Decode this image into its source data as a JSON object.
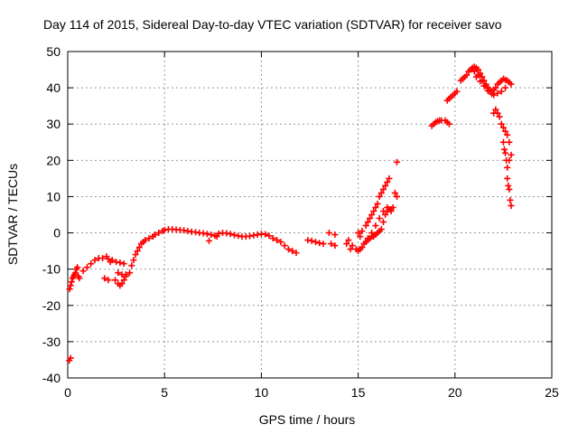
{
  "chart_data": {
    "type": "scatter",
    "title": "Day 114 of 2015, Sidereal Day-to-day VTEC variation (SDTVAR) for receiver savo",
    "xlabel": "GPS time / hours",
    "ylabel": "SDTVAR / TECUs",
    "xlim": [
      0,
      25
    ],
    "ylim": [
      -40,
      50
    ],
    "xticks": [
      "0",
      "5",
      "10",
      "15",
      "20",
      "25"
    ],
    "yticks": [
      "-40",
      "-30",
      "-20",
      "-10",
      "0",
      "10",
      "20",
      "30",
      "40",
      "50"
    ],
    "grid": true,
    "marker": "plus",
    "colors": {
      "series": "#ff0000",
      "grid": "#999999",
      "axis": "#000000"
    },
    "series": [
      {
        "name": "SDTVAR",
        "points": [
          [
            0.08,
            -35.2
          ],
          [
            0.15,
            -34.5
          ],
          [
            0.1,
            -15.5
          ],
          [
            0.15,
            -14.5
          ],
          [
            0.2,
            -13.5
          ],
          [
            0.25,
            -12.5
          ],
          [
            0.3,
            -12
          ],
          [
            0.35,
            -11.5
          ],
          [
            0.4,
            -11
          ],
          [
            0.45,
            -10
          ],
          [
            0.5,
            -9.5
          ],
          [
            0.55,
            -12
          ],
          [
            0.6,
            -12.5
          ],
          [
            0.8,
            -10.5
          ],
          [
            1.0,
            -9.5
          ],
          [
            1.2,
            -8.5
          ],
          [
            1.4,
            -7.5
          ],
          [
            1.6,
            -7
          ],
          [
            1.8,
            -7
          ],
          [
            2.0,
            -6.5
          ],
          [
            2.1,
            -7.2
          ],
          [
            2.2,
            -8
          ],
          [
            1.9,
            -12.5
          ],
          [
            2.1,
            -13
          ],
          [
            2.3,
            -7.5
          ],
          [
            2.5,
            -8
          ],
          [
            2.7,
            -8.2
          ],
          [
            2.9,
            -8.5
          ],
          [
            2.45,
            -13
          ],
          [
            2.6,
            -14
          ],
          [
            2.7,
            -14.5
          ],
          [
            2.8,
            -14
          ],
          [
            2.9,
            -13
          ],
          [
            3.0,
            -12
          ],
          [
            2.6,
            -11
          ],
          [
            2.8,
            -11.5
          ],
          [
            3.0,
            -11.5
          ],
          [
            3.2,
            -11
          ],
          [
            3.3,
            -9
          ],
          [
            3.4,
            -7.5
          ],
          [
            3.5,
            -6
          ],
          [
            3.6,
            -5
          ],
          [
            3.7,
            -4
          ],
          [
            3.8,
            -3
          ],
          [
            3.9,
            -2.5
          ],
          [
            4.0,
            -2
          ],
          [
            4.2,
            -1.5
          ],
          [
            4.4,
            -1
          ],
          [
            4.5,
            -0.5
          ],
          [
            4.7,
            0
          ],
          [
            4.9,
            0.5
          ],
          [
            5.0,
            0.8
          ],
          [
            5.2,
            1
          ],
          [
            5.4,
            1
          ],
          [
            5.6,
            0.9
          ],
          [
            5.8,
            0.8
          ],
          [
            6.0,
            0.7
          ],
          [
            6.2,
            0.5
          ],
          [
            6.4,
            0.3
          ],
          [
            6.6,
            0.2
          ],
          [
            6.8,
            0
          ],
          [
            7.0,
            -0.1
          ],
          [
            7.2,
            -0.3
          ],
          [
            7.4,
            -0.5
          ],
          [
            7.3,
            -2.2
          ],
          [
            7.6,
            -0.8
          ],
          [
            7.7,
            -1
          ],
          [
            7.8,
            -0.2
          ],
          [
            8.0,
            0
          ],
          [
            8.2,
            -0.1
          ],
          [
            8.4,
            -0.3
          ],
          [
            8.6,
            -0.6
          ],
          [
            8.8,
            -0.8
          ],
          [
            9.0,
            -1
          ],
          [
            9.2,
            -1
          ],
          [
            9.4,
            -0.9
          ],
          [
            9.6,
            -0.7
          ],
          [
            9.8,
            -0.5
          ],
          [
            10.0,
            -0.3
          ],
          [
            10.2,
            -0.4
          ],
          [
            10.4,
            -0.8
          ],
          [
            10.6,
            -1.5
          ],
          [
            10.8,
            -2
          ],
          [
            11.0,
            -2.5
          ],
          [
            11.2,
            -3.5
          ],
          [
            11.4,
            -4.5
          ],
          [
            11.6,
            -5
          ],
          [
            11.8,
            -5.5
          ],
          [
            12.4,
            -2
          ],
          [
            12.6,
            -2.2
          ],
          [
            12.8,
            -2.5
          ],
          [
            13.0,
            -2.8
          ],
          [
            13.2,
            -3
          ],
          [
            13.5,
            0
          ],
          [
            13.6,
            -3
          ],
          [
            13.8,
            -3.5
          ],
          [
            13.8,
            -0.5
          ],
          [
            14.4,
            -3
          ],
          [
            14.5,
            -2
          ],
          [
            14.6,
            -4.5
          ],
          [
            14.7,
            -3.5
          ],
          [
            14.9,
            -4.5
          ],
          [
            15.0,
            -5
          ],
          [
            15.1,
            -4.5
          ],
          [
            15.2,
            -4
          ],
          [
            15.3,
            -3
          ],
          [
            15.4,
            -2.5
          ],
          [
            15.5,
            -2
          ],
          [
            15.6,
            -1.5
          ],
          [
            15.7,
            -1
          ],
          [
            15.8,
            -1
          ],
          [
            15.9,
            -0.5
          ],
          [
            16.0,
            0
          ],
          [
            16.1,
            0.5
          ],
          [
            16.2,
            1
          ],
          [
            16.3,
            3
          ],
          [
            16.4,
            5
          ],
          [
            16.5,
            6
          ],
          [
            16.6,
            6.5
          ],
          [
            16.7,
            6.5
          ],
          [
            16.8,
            7
          ],
          [
            16.9,
            11
          ],
          [
            17.0,
            10
          ],
          [
            17.0,
            19.5
          ],
          [
            15.0,
            0
          ],
          [
            15.1,
            -1
          ],
          [
            15.2,
            0.5
          ],
          [
            15.4,
            2
          ],
          [
            15.5,
            3
          ],
          [
            15.6,
            4
          ],
          [
            15.7,
            5
          ],
          [
            15.8,
            6
          ],
          [
            15.9,
            7
          ],
          [
            16.0,
            8
          ],
          [
            16.1,
            10
          ],
          [
            16.2,
            11
          ],
          [
            16.3,
            12
          ],
          [
            16.4,
            13
          ],
          [
            16.5,
            14
          ],
          [
            16.6,
            15
          ],
          [
            15.5,
            -1.5
          ],
          [
            15.7,
            0
          ],
          [
            15.9,
            2
          ],
          [
            16.1,
            4
          ],
          [
            16.3,
            6
          ],
          [
            16.5,
            7
          ],
          [
            16.7,
            6
          ],
          [
            18.8,
            29.5
          ],
          [
            18.9,
            30
          ],
          [
            19.0,
            30.5
          ],
          [
            19.1,
            30.8
          ],
          [
            19.2,
            31
          ],
          [
            19.3,
            31
          ],
          [
            19.5,
            31
          ],
          [
            19.6,
            30.5
          ],
          [
            19.7,
            30
          ],
          [
            19.6,
            36.5
          ],
          [
            19.7,
            37
          ],
          [
            19.8,
            37.5
          ],
          [
            19.9,
            38
          ],
          [
            20.0,
            38.5
          ],
          [
            20.1,
            39
          ],
          [
            20.3,
            42
          ],
          [
            20.4,
            42.5
          ],
          [
            20.5,
            43
          ],
          [
            20.6,
            43.5
          ],
          [
            20.7,
            44.5
          ],
          [
            20.8,
            45
          ],
          [
            20.9,
            45.5
          ],
          [
            21.0,
            45.8
          ],
          [
            21.1,
            45.5
          ],
          [
            21.2,
            45
          ],
          [
            21.3,
            44
          ],
          [
            21.4,
            43
          ],
          [
            21.5,
            42
          ],
          [
            21.6,
            41
          ],
          [
            21.7,
            40
          ],
          [
            21.8,
            39.5
          ],
          [
            21.9,
            39
          ],
          [
            22.0,
            39.5
          ],
          [
            22.1,
            40
          ],
          [
            22.2,
            41
          ],
          [
            22.3,
            41.5
          ],
          [
            22.4,
            42
          ],
          [
            22.5,
            42.5
          ],
          [
            22.6,
            42.2
          ],
          [
            22.7,
            42
          ],
          [
            22.8,
            41.5
          ],
          [
            22.9,
            41
          ],
          [
            21.0,
            44.5
          ],
          [
            21.2,
            43.5
          ],
          [
            21.4,
            42
          ],
          [
            21.6,
            40.5
          ],
          [
            21.8,
            39
          ],
          [
            22.0,
            38
          ],
          [
            22.2,
            38.5
          ],
          [
            22.4,
            39
          ],
          [
            22.6,
            40
          ],
          [
            21.1,
            43
          ],
          [
            21.3,
            41.8
          ],
          [
            21.5,
            40.5
          ],
          [
            21.7,
            39.2
          ],
          [
            21.9,
            38.3
          ],
          [
            22.0,
            33
          ],
          [
            22.1,
            34
          ],
          [
            22.2,
            33
          ],
          [
            22.3,
            32
          ],
          [
            22.4,
            30
          ],
          [
            22.5,
            29
          ],
          [
            22.5,
            25
          ],
          [
            22.6,
            28
          ],
          [
            22.6,
            22
          ],
          [
            22.7,
            27
          ],
          [
            22.7,
            18
          ],
          [
            22.8,
            25
          ],
          [
            22.8,
            20
          ],
          [
            22.8,
            12
          ],
          [
            22.85,
            9
          ],
          [
            22.9,
            7.5
          ],
          [
            22.9,
            21.5
          ],
          [
            22.7,
            15
          ],
          [
            22.75,
            13
          ],
          [
            22.65,
            20
          ],
          [
            22.55,
            23
          ]
        ]
      }
    ]
  }
}
